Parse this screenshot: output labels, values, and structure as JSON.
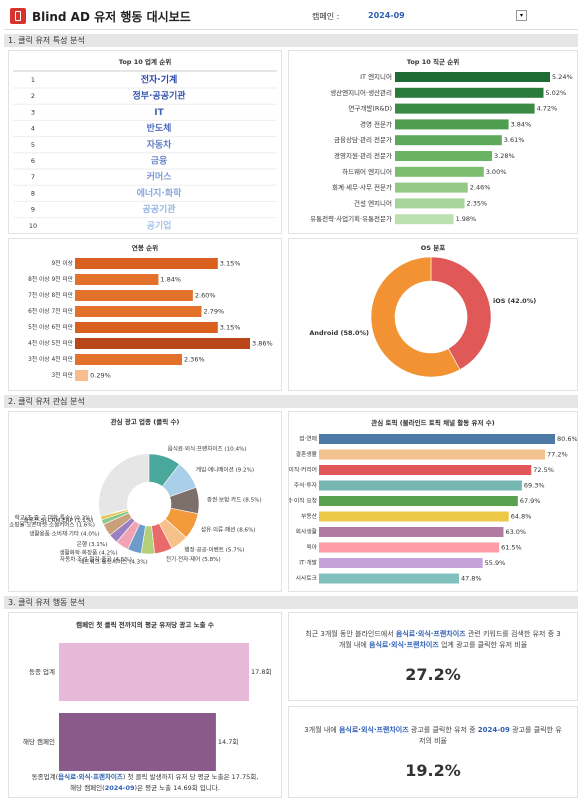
{
  "header": {
    "title": "Blind AD 유저 행동 대시보드",
    "campaign_label": "캠페인 :",
    "campaign": "2024-09"
  },
  "sections": [
    "1. 클릭 유저 특성 분석",
    "2. 클릭 유저 관심 분석",
    "3. 클릭 유저 행동 분석"
  ],
  "table": {
    "title": "Top 10 업계 순위",
    "rows": [
      [
        1,
        "전자·기계"
      ],
      [
        2,
        "정부·공공기관"
      ],
      [
        3,
        "IT"
      ],
      [
        4,
        "반도체"
      ],
      [
        5,
        "자동차"
      ],
      [
        6,
        "금융"
      ],
      [
        7,
        "커머스"
      ],
      [
        8,
        "에너지·화학"
      ],
      [
        9,
        "공공기관"
      ],
      [
        10,
        "공기업"
      ]
    ]
  },
  "chart_data": [
    {
      "type": "hbar",
      "title": "Top 10 직군 순위",
      "categories": [
        "IT 엔지니어",
        "생산엔지니어·생산관리",
        "연구개발(R&D)",
        "경영 전문가",
        "금융상담·관리 전문가",
        "경영지원·관리 전문가",
        "하드웨어 엔지니어",
        "회계·세무·사무 전문가",
        "건설 엔지니어",
        "유통전략·사업기획·유통전문가"
      ],
      "values": [
        5.24,
        5.02,
        4.72,
        3.84,
        3.61,
        3.28,
        3.0,
        2.46,
        2.35,
        1.98
      ],
      "value_labels": [
        "5.24%",
        "5.02%",
        "4.72%",
        "3.84%",
        "3.61%",
        "3.28%",
        "3.00%",
        "2.46%",
        "2.35%",
        "1.98%"
      ],
      "colors": [
        "#1f6b35",
        "#2a7a3c",
        "#3a8a45",
        "#4f9d4f",
        "#5da85a",
        "#6ab264",
        "#7cbd6f",
        "#93c985",
        "#a7d49a",
        "#bde0b0"
      ]
    },
    {
      "type": "hbar",
      "title": "연봉 순위",
      "categories": [
        "9천 이상",
        "8천 이상 9천 미만",
        "7천 이상 8천 미만",
        "6천 이상 7천 미만",
        "5천 이상 6천 미만",
        "4천 이상 5천 미만",
        "3천 이상 4천 미만",
        "3천 미만"
      ],
      "values": [
        3.15,
        1.84,
        2.6,
        2.79,
        3.15,
        3.86,
        2.36,
        0.29
      ],
      "value_labels": [
        "3.15%",
        "1.84%",
        "2.60%",
        "2.79%",
        "3.15%",
        "3.86%",
        "2.36%",
        "0.29%"
      ],
      "colors": [
        "#d9601f",
        "#e3712b",
        "#e3712b",
        "#e3712b",
        "#d9601f",
        "#b9461a",
        "#e3712b",
        "#f8bd8f"
      ]
    },
    {
      "type": "donut",
      "title": "OS 분포",
      "values": [
        42.0,
        58.0
      ],
      "value_labels": [
        "iOS (42.0%)",
        "Android (58.0%)"
      ],
      "colors": [
        "#e05858",
        "#f39232"
      ]
    },
    {
      "type": "donut",
      "title": "관심 광고 업종 (클릭 수)",
      "values": [
        10.4,
        9.2,
        8.5,
        8.6,
        5.7,
        5.8,
        4.3,
        4.5,
        4.2,
        3.1,
        4.0,
        1.6,
        1.1,
        0.3
      ],
      "value_labels": [
        "음식료·외식·프랜차이즈 (10.4%)",
        "게임·애니메이션 (9.2%)",
        "증권·보험·카드 (8.5%)",
        "섬유·의류·패션 (8.6%)",
        "행정·공공·이벤트 (5.7%)",
        "전기·전자·제어 (5.8%)",
        "네트워크·통신서비스 (4.3%)",
        "자동차·조선·철강·중공 (4.5%)",
        "생활화학·화장품 (4.2%)",
        "은행 (3.1%)",
        "생활용품·소비재·기타 (4.0%)",
        "쇼핑몰·오픈마켓·소셜커머스 (1.6%)",
        "솔루션·SI·CRM·ERP (1.1%)",
        "학교(초·중·고·대학·특수) (0.3%)"
      ],
      "colors": [
        "#4aa79b",
        "#a9cfe9",
        "#7d706a",
        "#f39a3a",
        "#f6c08a",
        "#e86a6a",
        "#b4cf7a",
        "#6d9ccb",
        "#f2a3b3",
        "#9b7fc0",
        "#c9a07a",
        "#86c98a",
        "#e5c349",
        "#5fb6c7"
      ]
    },
    {
      "type": "hbar",
      "title": "관심 토픽 (블라인드 토픽 채널 활동 유저 수)",
      "categories": [
        "썸·연애",
        "결혼생활",
        "이직·커리어",
        "주식·투자",
        "블라·이직 요청",
        "부동산",
        "회사생활",
        "육아",
        "IT·개발",
        "시사토크"
      ],
      "values": [
        80.6,
        77.2,
        72.5,
        69.3,
        67.9,
        64.8,
        63.0,
        61.5,
        55.9,
        47.8
      ],
      "value_labels": [
        "80.6%",
        "77.2%",
        "72.5%",
        "69.3%",
        "67.9%",
        "64.8%",
        "63.0%",
        "61.5%",
        "55.9%",
        "47.8%"
      ],
      "colors": [
        "#4e79a7",
        "#f2c38c",
        "#e15759",
        "#76b7b2",
        "#59a14f",
        "#edc948",
        "#b07aa1",
        "#ff9da7",
        "#c5a3d9",
        "#80c0bd"
      ]
    },
    {
      "type": "hbar",
      "title": "캠페인 첫 클릭 전까지의 평균 유저당 광고 노출 수",
      "categories": [
        "동종 업계",
        "해당 캠페인"
      ],
      "values": [
        17.8,
        14.7
      ],
      "value_labels": [
        "17.8회",
        "14.7회"
      ],
      "colors": [
        "#e8b8d8",
        "#8a5a8a"
      ],
      "note": [
        [
          "동종업계(",
          "음식료·외식·프랜차이즈",
          ") 첫 클릭 발생까지 유저 당 평균 노출은 17.75회,"
        ],
        [
          "해당 캠페인(",
          "2024-09",
          ")은 평균 노출 14.69회 입니다."
        ]
      ]
    }
  ],
  "cards": [
    {
      "text": [
        "최근 3개월 동안 블라인드에서 ",
        "음식료·외식·프랜차이즈",
        " 관련 키워드를 검색한 유저 중 3개월 내에 ",
        "음식료·외식·프랜차이즈",
        " 업계 광고를 클릭한 유저 비율"
      ],
      "value": "27.2%"
    },
    {
      "text": [
        "3개월 내에 ",
        "음식료·외식·프랜차이즈",
        " 광고를 클릭한 유저 중 ",
        "2024-09",
        " 광고를 클릭한 유저의 비율"
      ],
      "value": "19.2%"
    }
  ]
}
